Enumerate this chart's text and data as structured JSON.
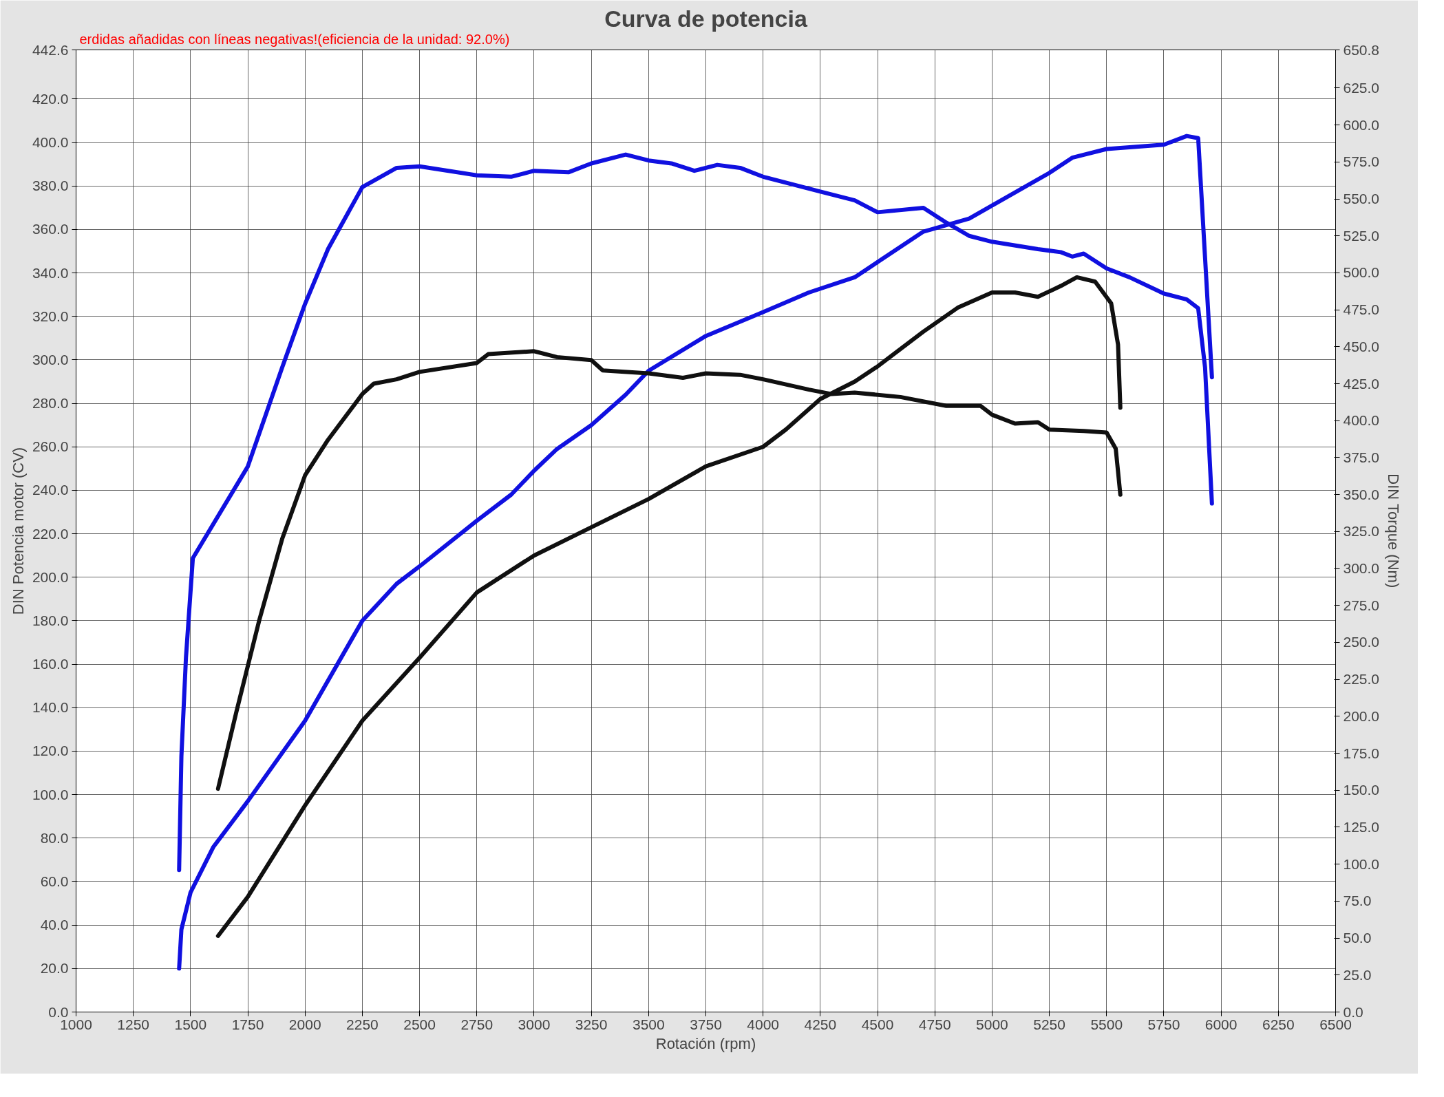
{
  "chart_data": {
    "type": "line",
    "title": "Curva de potencia",
    "xlabel": "Rotación (rpm)",
    "ylabel": "DIN Potencia motor (CV)",
    "y2label": "DIN Torque (Nm)",
    "annotations": [
      "erdidas añadidas con líneas negativas!(eficiencia de la unidad: 92.0%)"
    ],
    "xlim": [
      1000,
      6500
    ],
    "xticks": [
      1000,
      1250,
      1500,
      1750,
      2000,
      2250,
      2500,
      2750,
      3000,
      3250,
      3500,
      3750,
      4000,
      4250,
      4500,
      4750,
      5000,
      5250,
      5500,
      5750,
      6000,
      6250,
      6500
    ],
    "ylim": [
      0,
      442.6
    ],
    "yticks": [
      {
        "value": 0,
        "label": "0.0"
      },
      {
        "value": 20,
        "label": "20.0"
      },
      {
        "value": 40,
        "label": "40.0"
      },
      {
        "value": 60,
        "label": "60.0"
      },
      {
        "value": 80,
        "label": "80.0"
      },
      {
        "value": 100,
        "label": "100.0"
      },
      {
        "value": 120,
        "label": "120.0"
      },
      {
        "value": 140,
        "label": "140.0"
      },
      {
        "value": 160,
        "label": "160.0"
      },
      {
        "value": 180,
        "label": "180.0"
      },
      {
        "value": 200,
        "label": "200.0"
      },
      {
        "value": 220,
        "label": "220.0"
      },
      {
        "value": 240,
        "label": "240.0"
      },
      {
        "value": 260,
        "label": "260.0"
      },
      {
        "value": 280,
        "label": "280.0"
      },
      {
        "value": 300,
        "label": "300.0"
      },
      {
        "value": 320,
        "label": "320.0"
      },
      {
        "value": 340,
        "label": "340.0"
      },
      {
        "value": 360,
        "label": "360.0"
      },
      {
        "value": 380,
        "label": "380.0"
      },
      {
        "value": 400,
        "label": "400.0"
      },
      {
        "value": 420,
        "label": "420.0"
      },
      442.6
    ],
    "y2lim": [
      0,
      650.8
    ],
    "y2ticks": [
      {
        "value": 0,
        "label": "0.0"
      },
      {
        "value": 25,
        "label": "25.0"
      },
      {
        "value": 50,
        "label": "50.0"
      },
      {
        "value": 75,
        "label": "75.0"
      },
      {
        "value": 100,
        "label": "100.0"
      },
      {
        "value": 125,
        "label": "125.0"
      },
      {
        "value": 150,
        "label": "150.0"
      },
      {
        "value": 175,
        "label": "175.0"
      },
      {
        "value": 200,
        "label": "200.0"
      },
      {
        "value": 225,
        "label": "225.0"
      },
      {
        "value": 250,
        "label": "250.0"
      },
      {
        "value": 275,
        "label": "275.0"
      },
      {
        "value": 300,
        "label": "300.0"
      },
      {
        "value": 325,
        "label": "325.0"
      },
      {
        "value": 350,
        "label": "350.0"
      },
      {
        "value": 375,
        "label": "375.0"
      },
      {
        "value": 400,
        "label": "400.0"
      },
      {
        "value": 425,
        "label": "425.0"
      },
      {
        "value": 450,
        "label": "450.0"
      },
      {
        "value": 475,
        "label": "475.0"
      },
      {
        "value": 500,
        "label": "500.0"
      },
      {
        "value": 525,
        "label": "525.0"
      },
      {
        "value": 550,
        "label": "550.0"
      },
      {
        "value": 575,
        "label": "575.0"
      },
      {
        "value": 600,
        "label": "600.0"
      },
      {
        "value": 625,
        "label": "625.0"
      },
      650.8
    ],
    "grid": true,
    "marker": "none",
    "line_style": "solid",
    "series": [
      {
        "color": "#1010e0",
        "axis": "y2",
        "x": [
          1450,
          1460,
          1480,
          1510,
          1750,
          1900,
          2000,
          2100,
          2250,
          2400,
          2500,
          2750,
          2900,
          3000,
          3150,
          3250,
          3400,
          3500,
          3600,
          3700,
          3800,
          3900,
          4000,
          4250,
          4400,
          4500,
          4700,
          4800,
          4900,
          5000,
          5200,
          5300,
          5350,
          5400,
          5500,
          5600,
          5750,
          5850,
          5900,
          5930,
          5960
        ],
        "values": [
          96,
          173,
          240,
          307,
          369,
          436,
          479,
          516,
          558,
          571,
          572,
          566,
          565,
          569,
          568,
          574,
          580,
          576,
          574,
          569,
          573,
          571,
          565,
          555,
          549,
          541,
          544,
          534,
          525,
          521,
          516,
          514,
          511,
          513,
          503,
          497,
          486,
          482,
          476,
          436,
          344
        ]
      },
      {
        "color": "#1010e0",
        "x": [
          1450,
          1460,
          1500,
          1600,
          1750,
          2000,
          2250,
          2400,
          2500,
          2750,
          2900,
          3000,
          3100,
          3250,
          3400,
          3500,
          3750,
          4000,
          4200,
          4400,
          4500,
          4700,
          4800,
          4900,
          5000,
          5250,
          5350,
          5500,
          5750,
          5850,
          5900,
          5930,
          5960
        ],
        "values": [
          20,
          38,
          55,
          76,
          97,
          134,
          180,
          197,
          205,
          226,
          238,
          249,
          259,
          270,
          284,
          295,
          311,
          322,
          331,
          338,
          345,
          359,
          362,
          365,
          371,
          386,
          393,
          397,
          399,
          403,
          402,
          347,
          292
        ]
      },
      {
        "color": "#101010",
        "axis": "y2",
        "x": [
          1620,
          1700,
          1800,
          1900,
          2000,
          2100,
          2250,
          2300,
          2400,
          2500,
          2750,
          2800,
          3000,
          3100,
          3250,
          3300,
          3500,
          3650,
          3750,
          3900,
          4000,
          4200,
          4300,
          4400,
          4600,
          4800,
          4950,
          5000,
          5100,
          5200,
          5250,
          5400,
          5500,
          5540,
          5560
        ],
        "values": [
          151,
          203,
          265,
          320,
          363,
          387,
          418,
          425,
          428,
          433,
          439,
          445,
          447,
          443,
          441,
          434,
          432,
          429,
          432,
          431,
          428,
          421,
          418,
          419,
          416,
          410,
          410,
          404,
          398,
          399,
          394,
          393,
          392,
          381,
          350
        ]
      },
      {
        "color": "#101010",
        "x": [
          1620,
          1750,
          2000,
          2250,
          2500,
          2750,
          3000,
          3250,
          3500,
          3750,
          4000,
          4100,
          4250,
          4400,
          4500,
          4700,
          4850,
          5000,
          5100,
          5200,
          5300,
          5370,
          5450,
          5520,
          5550,
          5560
        ],
        "values": [
          35,
          53,
          95,
          134,
          163,
          193,
          210,
          223,
          236,
          251,
          260,
          268,
          282,
          290,
          297,
          313,
          324,
          331,
          331,
          329,
          334,
          338,
          336,
          326,
          307,
          278
        ]
      }
    ]
  }
}
